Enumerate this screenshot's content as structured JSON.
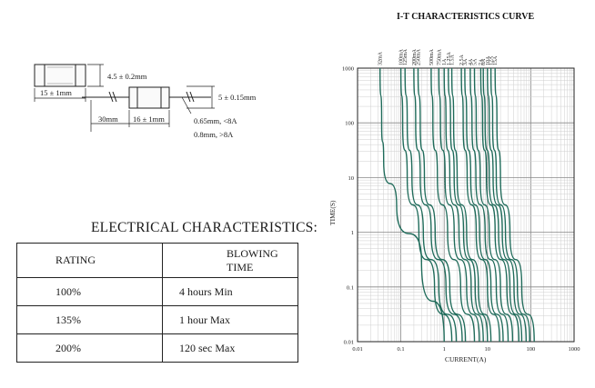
{
  "dimensions": {
    "body_length": "15 ± 1mm",
    "body_diameter": "4.5 ± 0.2mm",
    "lead_length": "30mm",
    "lead_body_length": "16 ± 1mm",
    "lead_body_diameter": "5 ± 0.15mm",
    "wire_small": "0.65mm, <8A",
    "wire_large": "0.8mm, >8A"
  },
  "electrical": {
    "title": "ELECTRICAL CHARACTERISTICS:",
    "headers": [
      "RATING",
      "BLOWING TIME"
    ],
    "rows": [
      [
        "100%",
        "4 hours Min"
      ],
      [
        "135%",
        "1 hour Max"
      ],
      [
        "200%",
        "120 sec Max"
      ]
    ]
  },
  "chart_data": {
    "type": "line",
    "title": "I-T CHARACTERISTICS CURVE",
    "xlabel": "CURRENT(A)",
    "ylabel": "TIME(S)",
    "xscale": "log",
    "yscale": "log",
    "xlim": [
      0.01,
      1000
    ],
    "ylim": [
      0.01,
      1000
    ],
    "x_ticks": [
      "0.01",
      "0.1",
      "1",
      "10",
      "100",
      "1000"
    ],
    "y_ticks": [
      "1000",
      "100",
      "10",
      "1",
      "0.1",
      "0.01"
    ],
    "grid": true,
    "line_color": "#1f6b5a",
    "series": [
      {
        "name": "32mA",
        "points": [
          [
            0.033,
            1000
          ],
          [
            0.036,
            100
          ],
          [
            0.04,
            20
          ],
          [
            0.08,
            3
          ],
          [
            0.3,
            0.3
          ],
          [
            1.0,
            0.01
          ]
        ]
      },
      {
        "name": "100mA",
        "points": [
          [
            0.1,
            1000
          ],
          [
            0.11,
            100
          ],
          [
            0.14,
            10
          ],
          [
            0.26,
            1
          ],
          [
            0.6,
            0.1
          ],
          [
            1.5,
            0.01
          ]
        ]
      },
      {
        "name": "125mA",
        "points": [
          [
            0.125,
            1000
          ],
          [
            0.14,
            100
          ],
          [
            0.18,
            10
          ],
          [
            0.33,
            1
          ],
          [
            0.75,
            0.1
          ],
          [
            1.9,
            0.01
          ]
        ]
      },
      {
        "name": "200mA",
        "points": [
          [
            0.2,
            1000
          ],
          [
            0.22,
            100
          ],
          [
            0.28,
            10
          ],
          [
            0.5,
            1
          ],
          [
            1.1,
            0.1
          ],
          [
            2.6,
            0.01
          ]
        ]
      },
      {
        "name": "250mA",
        "points": [
          [
            0.25,
            1000
          ],
          [
            0.28,
            100
          ],
          [
            0.35,
            10
          ],
          [
            0.62,
            1
          ],
          [
            1.35,
            0.1
          ],
          [
            3.1,
            0.01
          ]
        ]
      },
      {
        "name": "500mA",
        "points": [
          [
            0.5,
            1000
          ],
          [
            0.55,
            100
          ],
          [
            0.7,
            10
          ],
          [
            1.2,
            1
          ],
          [
            2.4,
            0.1
          ],
          [
            5.0,
            0.01
          ]
        ]
      },
      {
        "name": "750mA",
        "points": [
          [
            0.75,
            1000
          ],
          [
            0.82,
            100
          ],
          [
            1.05,
            10
          ],
          [
            1.7,
            1
          ],
          [
            3.3,
            0.1
          ],
          [
            6.5,
            0.01
          ]
        ]
      },
      {
        "name": "1A",
        "points": [
          [
            1.0,
            1000
          ],
          [
            1.1,
            100
          ],
          [
            1.35,
            10
          ],
          [
            2.2,
            1
          ],
          [
            4.2,
            0.1
          ],
          [
            8.0,
            0.01
          ]
        ]
      },
      {
        "name": "1.25A",
        "points": [
          [
            1.25,
            1000
          ],
          [
            1.4,
            100
          ],
          [
            1.7,
            10
          ],
          [
            2.8,
            1
          ],
          [
            5.2,
            0.1
          ],
          [
            10,
            0.01
          ]
        ]
      },
      {
        "name": "1.5A",
        "points": [
          [
            1.5,
            1000
          ],
          [
            1.65,
            100
          ],
          [
            2.0,
            10
          ],
          [
            3.3,
            1
          ],
          [
            6.2,
            0.1
          ],
          [
            12,
            0.01
          ]
        ]
      },
      {
        "name": "2.5A",
        "points": [
          [
            2.5,
            1000
          ],
          [
            2.75,
            100
          ],
          [
            3.4,
            10
          ],
          [
            5.5,
            1
          ],
          [
            10,
            0.1
          ],
          [
            19,
            0.01
          ]
        ]
      },
      {
        "name": "3A",
        "points": [
          [
            3.0,
            1000
          ],
          [
            3.3,
            100
          ],
          [
            4.1,
            10
          ],
          [
            6.6,
            1
          ],
          [
            12,
            0.1
          ],
          [
            23,
            0.01
          ]
        ]
      },
      {
        "name": "4A",
        "points": [
          [
            4.0,
            1000
          ],
          [
            4.4,
            100
          ],
          [
            5.4,
            10
          ],
          [
            8.8,
            1
          ],
          [
            16,
            0.1
          ],
          [
            30,
            0.01
          ]
        ]
      },
      {
        "name": "5A",
        "points": [
          [
            5.0,
            1000
          ],
          [
            5.5,
            100
          ],
          [
            6.8,
            10
          ],
          [
            11,
            1
          ],
          [
            20,
            0.1
          ],
          [
            38,
            0.01
          ]
        ]
      },
      {
        "name": "7A",
        "points": [
          [
            7.0,
            1000
          ],
          [
            7.7,
            100
          ],
          [
            9.5,
            10
          ],
          [
            15,
            1
          ],
          [
            28,
            0.1
          ],
          [
            53,
            0.01
          ]
        ]
      },
      {
        "name": "8A",
        "points": [
          [
            8.0,
            1000
          ],
          [
            8.8,
            100
          ],
          [
            11,
            10
          ],
          [
            18,
            1
          ],
          [
            33,
            0.1
          ],
          [
            62,
            0.01
          ]
        ]
      },
      {
        "name": "10A",
        "points": [
          [
            10,
            1000
          ],
          [
            11,
            100
          ],
          [
            13.5,
            10
          ],
          [
            22,
            1
          ],
          [
            41,
            0.1
          ],
          [
            78,
            0.01
          ]
        ]
      },
      {
        "name": "12A",
        "points": [
          [
            12,
            1000
          ],
          [
            13.2,
            100
          ],
          [
            16,
            10
          ],
          [
            26,
            1
          ],
          [
            49,
            0.1
          ],
          [
            95,
            0.01
          ]
        ]
      },
      {
        "name": "15A",
        "points": [
          [
            15,
            1000
          ],
          [
            16.5,
            100
          ],
          [
            20,
            10
          ],
          [
            33,
            1
          ],
          [
            62,
            0.1
          ],
          [
            120,
            0.01
          ]
        ]
      }
    ]
  }
}
